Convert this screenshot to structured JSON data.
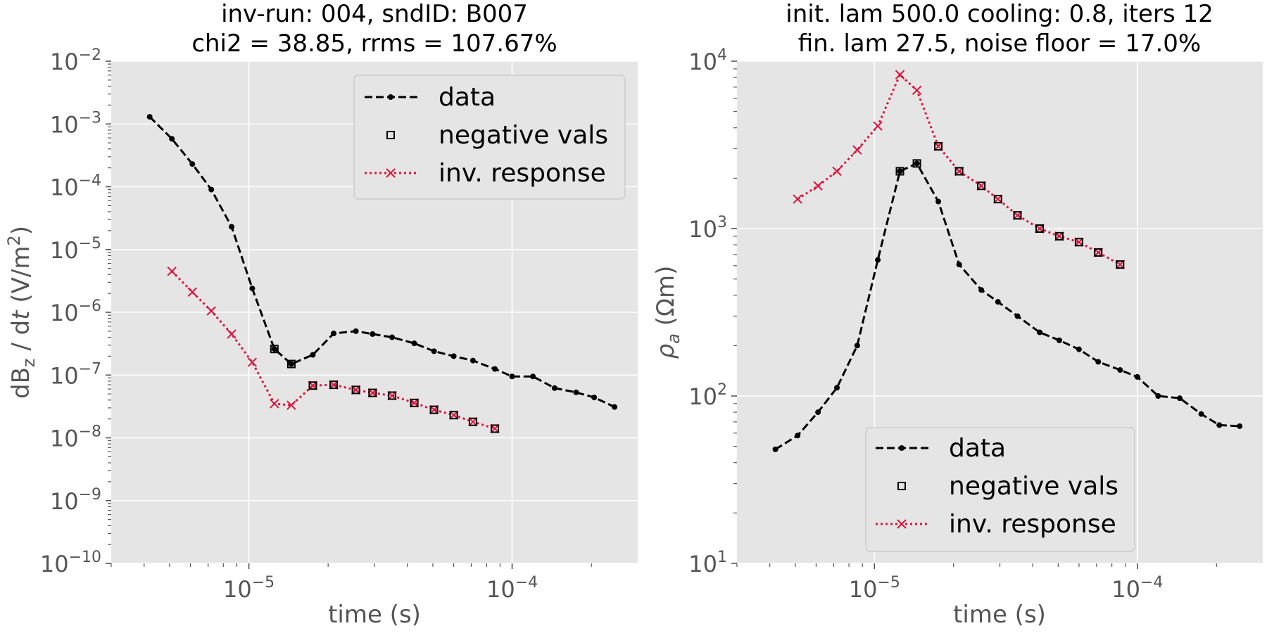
{
  "chart_data": [
    {
      "type": "line",
      "title_line1": "inv-run: 004, sndID: B007",
      "title_line2": "chi2 = 38.85, rrms = 107.67%",
      "xlabel": "time (s)",
      "ylabel_pre": "dB",
      "ylabel_sub": "z",
      "ylabel_mid": " / d",
      "ylabel_t": "t",
      "ylabel_unit": " (V/m",
      "ylabel_sup": "2",
      "ylabel_close": ")",
      "x_scale": "log",
      "y_scale": "log",
      "xlim": [
        3e-06,
        0.0003
      ],
      "ylim": [
        1e-10,
        0.01
      ],
      "x_ticks": [
        {
          "value": 1e-05,
          "mantissa": "10",
          "exponent": "−5"
        },
        {
          "value": 0.0001,
          "mantissa": "10",
          "exponent": "−4"
        }
      ],
      "y_ticks": [
        {
          "value": 1e-10,
          "mantissa": "10",
          "exponent": "−10"
        },
        {
          "value": 1e-09,
          "mantissa": "10",
          "exponent": "−9"
        },
        {
          "value": 1e-08,
          "mantissa": "10",
          "exponent": "−8"
        },
        {
          "value": 1e-07,
          "mantissa": "10",
          "exponent": "−7"
        },
        {
          "value": 1e-06,
          "mantissa": "10",
          "exponent": "−6"
        },
        {
          "value": 1e-05,
          "mantissa": "10",
          "exponent": "−5"
        },
        {
          "value": 0.0001,
          "mantissa": "10",
          "exponent": "−4"
        },
        {
          "value": 0.001,
          "mantissa": "10",
          "exponent": "−3"
        },
        {
          "value": 0.01,
          "mantissa": "10",
          "exponent": "−2"
        }
      ],
      "grid": true,
      "legend_placement": "upper right",
      "series": [
        {
          "name": "data",
          "style": "dashed-dot-markers",
          "color": "#000000",
          "x": [
            4.2e-06,
            5.1e-06,
            6.1e-06,
            7.2e-06,
            8.6e-06,
            1.03e-05,
            1.25e-05,
            1.45e-05,
            1.75e-05,
            2.1e-05,
            2.55e-05,
            2.95e-05,
            3.5e-05,
            4.25e-05,
            5.05e-05,
            6e-05,
            7.1e-05,
            8.6e-05,
            0.0001,
            0.00012,
            0.000145,
            0.000175,
            0.000205,
            0.000245
          ],
          "y": [
            0.0013,
            0.00058,
            0.00023,
            9e-05,
            2.3e-05,
            2.4e-06,
            2.6e-07,
            1.5e-07,
            2.1e-07,
            4.6e-07,
            5e-07,
            4.5e-07,
            4e-07,
            3.2e-07,
            2.4e-07,
            2e-07,
            1.7e-07,
            1.25e-07,
            9.5e-08,
            9.5e-08,
            6.2e-08,
            5.3e-08,
            4.4e-08,
            3.1e-08
          ]
        },
        {
          "name": "negative vals",
          "style": "open-squares",
          "color": "#000000",
          "x": [
            1.25e-05,
            1.45e-05,
            1.75e-05,
            2.1e-05,
            2.55e-05,
            2.95e-05,
            3.5e-05,
            4.25e-05,
            5.05e-05,
            6e-05,
            7.1e-05,
            8.6e-05
          ],
          "y": [
            2.6e-07,
            1.5e-07,
            6.8e-08,
            7e-08,
            5.8e-08,
            5.2e-08,
            4.7e-08,
            3.6e-08,
            2.8e-08,
            2.3e-08,
            1.8e-08,
            1.4e-08
          ]
        },
        {
          "name": "inv. response",
          "style": "dotted-x-markers",
          "color": "#dc143c",
          "x": [
            5.1e-06,
            6.1e-06,
            7.2e-06,
            8.6e-06,
            1.03e-05,
            1.25e-05,
            1.45e-05,
            1.75e-05,
            2.1e-05,
            2.55e-05,
            2.95e-05,
            3.5e-05,
            4.25e-05,
            5.05e-05,
            6e-05,
            7.1e-05,
            8.6e-05
          ],
          "y": [
            4.5e-06,
            2.1e-06,
            1.05e-06,
            4.5e-07,
            1.6e-07,
            3.5e-08,
            3.3e-08,
            6.8e-08,
            7e-08,
            5.8e-08,
            5.2e-08,
            4.7e-08,
            3.6e-08,
            2.8e-08,
            2.3e-08,
            1.8e-08,
            1.4e-08
          ]
        }
      ]
    },
    {
      "type": "line",
      "title_line1": "init. lam 500.0 cooling: 0.8, iters 12",
      "title_line2": "fin. lam 27.5, noise floor = 17.0%",
      "xlabel": "time (s)",
      "ylabel_rho": "ρ",
      "ylabel_sub": "a",
      "ylabel_unit": " (Ωm)",
      "x_scale": "log",
      "y_scale": "log",
      "xlim": [
        3e-06,
        0.0003
      ],
      "ylim": [
        10,
        10000
      ],
      "x_ticks": [
        {
          "value": 1e-05,
          "mantissa": "10",
          "exponent": "−5"
        },
        {
          "value": 0.0001,
          "mantissa": "10",
          "exponent": "−4"
        }
      ],
      "y_ticks": [
        {
          "value": 10,
          "mantissa": "10",
          "exponent": "1"
        },
        {
          "value": 100,
          "mantissa": "10",
          "exponent": "2"
        },
        {
          "value": 1000,
          "mantissa": "10",
          "exponent": "3"
        },
        {
          "value": 10000,
          "mantissa": "10",
          "exponent": "4"
        }
      ],
      "grid": true,
      "legend_placement": "lower center",
      "series": [
        {
          "name": "data",
          "style": "dashed-dot-markers",
          "color": "#000000",
          "x": [
            4.2e-06,
            5.1e-06,
            6.1e-06,
            7.2e-06,
            8.6e-06,
            1.03e-05,
            1.25e-05,
            1.45e-05,
            1.75e-05,
            2.1e-05,
            2.55e-05,
            2.95e-05,
            3.5e-05,
            4.25e-05,
            5.05e-05,
            6e-05,
            7.1e-05,
            8.6e-05,
            0.0001,
            0.00012,
            0.000145,
            0.000175,
            0.000205,
            0.000245
          ],
          "y": [
            48,
            58,
            80,
            112,
            200,
            650,
            2200,
            2450,
            1450,
            610,
            430,
            365,
            300,
            240,
            215,
            190,
            160,
            143,
            130,
            100,
            97,
            78,
            67,
            66
          ]
        },
        {
          "name": "negative vals",
          "style": "open-squares",
          "color": "#000000",
          "x": [
            1.25e-05,
            1.45e-05,
            1.75e-05,
            2.1e-05,
            2.55e-05,
            2.95e-05,
            3.5e-05,
            4.25e-05,
            5.05e-05,
            6e-05,
            7.1e-05,
            8.6e-05
          ],
          "y": [
            2200,
            2450,
            3100,
            2200,
            1800,
            1500,
            1200,
            1000,
            900,
            830,
            720,
            610
          ]
        },
        {
          "name": "inv. response",
          "style": "dotted-x-markers",
          "color": "#dc143c",
          "x": [
            5.1e-06,
            6.1e-06,
            7.2e-06,
            8.6e-06,
            1.03e-05,
            1.25e-05,
            1.45e-05,
            1.75e-05,
            2.1e-05,
            2.55e-05,
            2.95e-05,
            3.5e-05,
            4.25e-05,
            5.05e-05,
            6e-05,
            7.1e-05,
            8.6e-05
          ],
          "y": [
            1500,
            1800,
            2200,
            2950,
            4100,
            8300,
            6700,
            3100,
            2200,
            1800,
            1500,
            1200,
            1000,
            900,
            830,
            720,
            610
          ]
        }
      ]
    }
  ],
  "colors": {
    "axes_background": "#e5e5e5",
    "grid": "#ffffff",
    "tick_text": "#555555",
    "title_text": "#000000",
    "legend_background": "#e5e5e5",
    "legend_border": "#cccccc"
  }
}
